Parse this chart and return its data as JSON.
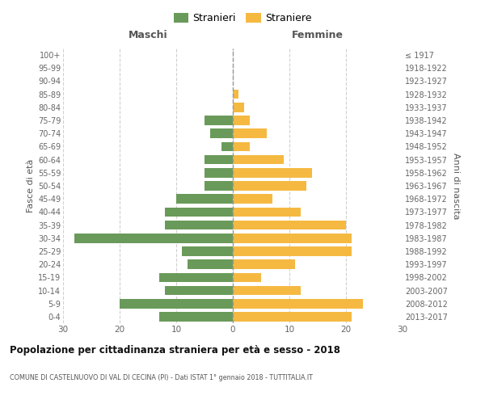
{
  "age_groups": [
    "0-4",
    "5-9",
    "10-14",
    "15-19",
    "20-24",
    "25-29",
    "30-34",
    "35-39",
    "40-44",
    "45-49",
    "50-54",
    "55-59",
    "60-64",
    "65-69",
    "70-74",
    "75-79",
    "80-84",
    "85-89",
    "90-94",
    "95-99",
    "100+"
  ],
  "birth_years": [
    "2013-2017",
    "2008-2012",
    "2003-2007",
    "1998-2002",
    "1993-1997",
    "1988-1992",
    "1983-1987",
    "1978-1982",
    "1973-1977",
    "1968-1972",
    "1963-1967",
    "1958-1962",
    "1953-1957",
    "1948-1952",
    "1943-1947",
    "1938-1942",
    "1933-1937",
    "1928-1932",
    "1923-1927",
    "1918-1922",
    "≤ 1917"
  ],
  "maschi": [
    13,
    20,
    12,
    13,
    8,
    9,
    28,
    12,
    12,
    10,
    5,
    5,
    5,
    2,
    4,
    5,
    0,
    0,
    0,
    0,
    0
  ],
  "femmine": [
    21,
    23,
    12,
    5,
    11,
    21,
    21,
    20,
    12,
    7,
    13,
    14,
    9,
    3,
    6,
    3,
    2,
    1,
    0,
    0,
    0
  ],
  "color_maschi": "#6a9a5a",
  "color_femmine": "#f5b942",
  "title": "Popolazione per cittadinanza straniera per età e sesso - 2018",
  "subtitle": "COMUNE DI CASTELNUOVO DI VAL DI CECINA (PI) - Dati ISTAT 1° gennaio 2018 - TUTTITALIA.IT",
  "label_left": "Maschi",
  "label_right": "Femmine",
  "ylabel_left": "Fasce di età",
  "ylabel_right": "Anni di nascita",
  "legend_maschi": "Stranieri",
  "legend_femmine": "Straniere",
  "xlim": 30,
  "background_color": "#ffffff",
  "grid_color": "#d0d0d0"
}
